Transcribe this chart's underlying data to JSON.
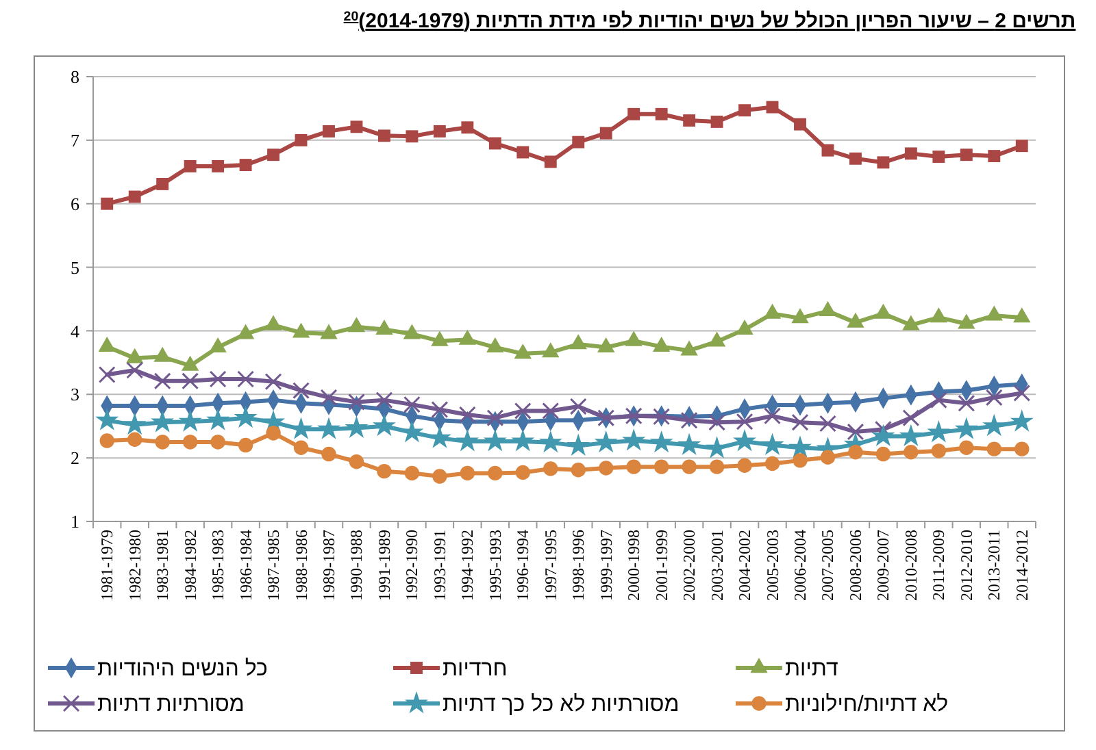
{
  "chart_data": {
    "type": "line",
    "title": "תרשים 2 – שיעור הפריון הכולל של נשים יהודיות לפי מידת הדתיות (2014-1979)$^{20}$",
    "categories": [
      "1981-1979",
      "1982-1980",
      "1983-1981",
      "1984-1982",
      "1985-1983",
      "1986-1984",
      "1987-1985",
      "1988-1986",
      "1989-1987",
      "1990-1988",
      "1991-1989",
      "1992-1990",
      "1993-1991",
      "1994-1992",
      "1995-1993",
      "1996-1994",
      "1997-1995",
      "1998-1996",
      "1999-1997",
      "2000-1998",
      "2001-1999",
      "2002-2000",
      "2003-2001",
      "2004-2002",
      "2005-2003",
      "2006-2004",
      "2007-2005",
      "2008-2006",
      "2009-2007",
      "2010-2008",
      "2011-2009",
      "2012-2010",
      "2013-2011",
      "2014-2012"
    ],
    "ylim": [
      1,
      8
    ],
    "yticks": [
      1,
      2,
      3,
      4,
      5,
      6,
      7,
      8
    ],
    "grid": "y",
    "legend": "bottom",
    "line_style": "solid",
    "series": [
      {
        "name": "כל הנשים היהודיות",
        "color": "#4572a7",
        "marker": "diamond",
        "values": [
          2.82,
          2.82,
          2.82,
          2.82,
          2.86,
          2.88,
          2.91,
          2.86,
          2.84,
          2.81,
          2.77,
          2.66,
          2.59,
          2.57,
          2.57,
          2.57,
          2.59,
          2.59,
          2.63,
          2.66,
          2.66,
          2.65,
          2.66,
          2.77,
          2.83,
          2.83,
          2.86,
          2.88,
          2.94,
          2.99,
          3.04,
          3.06,
          3.13,
          3.16
        ]
      },
      {
        "name": "חרדיות",
        "color": "#aa4643",
        "marker": "square",
        "values": [
          6.0,
          6.11,
          6.31,
          6.59,
          6.59,
          6.61,
          6.77,
          7.0,
          7.14,
          7.21,
          7.07,
          7.06,
          7.14,
          7.2,
          6.95,
          6.81,
          6.66,
          6.97,
          7.11,
          7.41,
          7.41,
          7.31,
          7.29,
          7.47,
          7.52,
          7.25,
          6.84,
          6.71,
          6.65,
          6.79,
          6.74,
          6.77,
          6.75,
          6.91
        ]
      },
      {
        "name": "דתיות",
        "color": "#89a54e",
        "marker": "triangle",
        "values": [
          3.75,
          3.57,
          3.59,
          3.45,
          3.74,
          3.95,
          4.09,
          3.97,
          3.95,
          4.06,
          4.02,
          3.95,
          3.84,
          3.86,
          3.74,
          3.64,
          3.66,
          3.79,
          3.74,
          3.84,
          3.75,
          3.69,
          3.83,
          4.02,
          4.27,
          4.2,
          4.31,
          4.13,
          4.27,
          4.09,
          4.21,
          4.11,
          4.24,
          4.21
        ]
      },
      {
        "name": "מסורתיות דתיות",
        "color": "#71588f",
        "marker": "cross",
        "values": [
          3.31,
          3.38,
          3.21,
          3.21,
          3.24,
          3.24,
          3.2,
          3.06,
          2.95,
          2.88,
          2.91,
          2.84,
          2.76,
          2.68,
          2.63,
          2.74,
          2.74,
          2.81,
          2.63,
          2.66,
          2.65,
          2.59,
          2.56,
          2.57,
          2.66,
          2.56,
          2.54,
          2.41,
          2.45,
          2.63,
          2.91,
          2.86,
          2.95,
          3.02
        ]
      },
      {
        "name": "מסורתיות לא כל כך דתיות",
        "color": "#4198af",
        "marker": "star",
        "values": [
          2.59,
          2.52,
          2.56,
          2.57,
          2.59,
          2.63,
          2.56,
          2.45,
          2.45,
          2.47,
          2.5,
          2.4,
          2.31,
          2.26,
          2.26,
          2.26,
          2.24,
          2.19,
          2.24,
          2.27,
          2.24,
          2.2,
          2.15,
          2.26,
          2.2,
          2.16,
          2.14,
          2.21,
          2.34,
          2.34,
          2.4,
          2.45,
          2.5,
          2.57
        ]
      },
      {
        "name": "לא דתיות/חילוניות",
        "color": "#db843d",
        "marker": "circle",
        "values": [
          2.27,
          2.29,
          2.25,
          2.25,
          2.25,
          2.2,
          2.39,
          2.16,
          2.06,
          1.94,
          1.79,
          1.76,
          1.71,
          1.76,
          1.76,
          1.77,
          1.83,
          1.81,
          1.84,
          1.86,
          1.86,
          1.86,
          1.86,
          1.88,
          1.91,
          1.96,
          2.01,
          2.09,
          2.06,
          2.09,
          2.11,
          2.16,
          2.14,
          2.14
        ]
      }
    ]
  }
}
